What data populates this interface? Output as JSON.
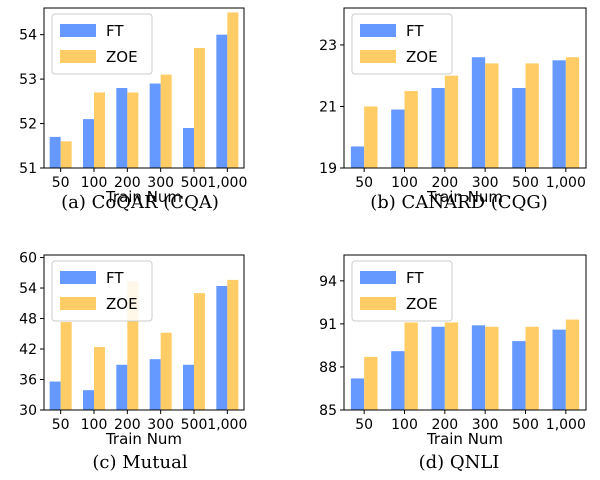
{
  "colors": {
    "FT": "#6699ff",
    "ZOE": "#ffcc66"
  },
  "chart_data": [
    {
      "type": "bar",
      "caption": "(a) CoQAR (CQA)",
      "xlabel": "Train Num",
      "categories": [
        "50",
        "100",
        "200",
        "300",
        "500",
        "1,000"
      ],
      "yticks": [
        "51",
        "52",
        "53",
        "54"
      ],
      "ylim": [
        51,
        54.6
      ],
      "legend": [
        "FT",
        "ZOE"
      ],
      "legend_position": "top-left",
      "series": [
        {
          "name": "FT",
          "values": [
            51.7,
            52.1,
            52.8,
            52.9,
            51.9,
            54.0
          ]
        },
        {
          "name": "ZOE",
          "values": [
            51.6,
            52.7,
            52.7,
            53.1,
            53.7,
            54.5
          ]
        }
      ]
    },
    {
      "type": "bar",
      "caption": "(b) CANARD (CQG)",
      "xlabel": "Train Num",
      "categories": [
        "50",
        "100",
        "200",
        "300",
        "500",
        "1,000"
      ],
      "yticks": [
        "19",
        "21",
        "23"
      ],
      "ylim": [
        19,
        24.2
      ],
      "legend": [
        "FT",
        "ZOE"
      ],
      "legend_position": "top-left",
      "series": [
        {
          "name": "FT",
          "values": [
            19.7,
            20.9,
            21.6,
            22.6,
            21.6,
            22.5
          ]
        },
        {
          "name": "ZOE",
          "values": [
            21.0,
            21.5,
            22.0,
            22.4,
            22.4,
            22.6
          ]
        }
      ]
    },
    {
      "type": "bar",
      "caption": "(c) Mutual",
      "xlabel": "Train Num",
      "categories": [
        "50",
        "100",
        "200",
        "300",
        "500",
        "1,000"
      ],
      "yticks": [
        "30",
        "36",
        "42",
        "48",
        "54",
        "60"
      ],
      "ylim": [
        30,
        60.5
      ],
      "legend": [
        "FT",
        "ZOE"
      ],
      "legend_position": "top-left",
      "series": [
        {
          "name": "FT",
          "values": [
            35.6,
            33.9,
            38.9,
            40.0,
            38.9,
            54.4
          ]
        },
        {
          "name": "ZOE",
          "values": [
            47.3,
            42.4,
            55.3,
            45.2,
            53.0,
            55.6
          ]
        }
      ]
    },
    {
      "type": "bar",
      "caption": "(d) QNLI",
      "xlabel": "Train Num",
      "categories": [
        "50",
        "100",
        "200",
        "300",
        "500",
        "1,000"
      ],
      "yticks": [
        "85",
        "88",
        "91",
        "94"
      ],
      "ylim": [
        85,
        95.8
      ],
      "legend": [
        "FT",
        "ZOE"
      ],
      "legend_position": "top-left",
      "series": [
        {
          "name": "FT",
          "values": [
            87.2,
            89.1,
            90.8,
            90.9,
            89.8,
            90.6
          ]
        },
        {
          "name": "ZOE",
          "values": [
            88.7,
            91.1,
            91.1,
            90.8,
            90.8,
            91.3
          ]
        }
      ]
    }
  ]
}
